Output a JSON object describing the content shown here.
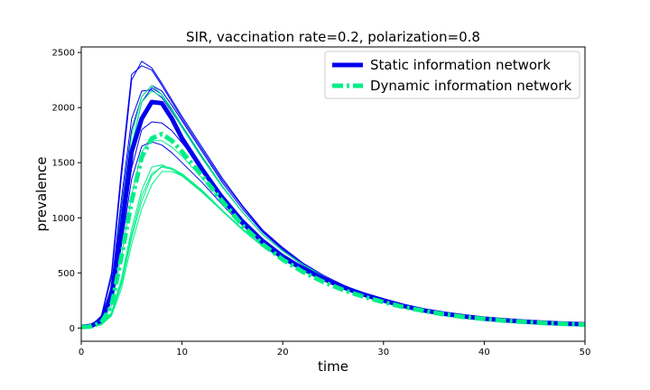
{
  "chart_data": {
    "type": "line",
    "title": "SIR, vaccination rate=0.2, polarization=0.8",
    "xlabel": "time",
    "ylabel": "prevalence",
    "xlim": [
      0,
      50
    ],
    "ylim": [
      -120,
      2550
    ],
    "xticks": [
      0,
      10,
      20,
      30,
      40,
      50
    ],
    "yticks": [
      0,
      500,
      1000,
      1500,
      2000,
      2500
    ],
    "grid": false,
    "legend_position": "top-right",
    "colors": {
      "static": "#0000ee",
      "dynamic": "#00ee88"
    },
    "x": [
      0,
      1,
      2,
      3,
      4,
      5,
      6,
      7,
      8,
      9,
      10,
      12,
      14,
      16,
      18,
      20,
      22,
      24,
      26,
      28,
      30,
      32,
      34,
      36,
      38,
      40,
      42,
      44,
      46,
      48,
      50
    ],
    "series": [
      {
        "name": "Static information network",
        "kind": "static-mean",
        "values": [
          10,
          20,
          70,
          300,
          900,
          1600,
          1900,
          2050,
          2040,
          1900,
          1720,
          1440,
          1180,
          960,
          780,
          640,
          540,
          450,
          370,
          305,
          250,
          200,
          160,
          130,
          105,
          85,
          70,
          58,
          48,
          40,
          34
        ]
      },
      {
        "name": "Dynamic information network",
        "kind": "dynamic-mean",
        "values": [
          8,
          15,
          50,
          200,
          650,
          1150,
          1550,
          1720,
          1760,
          1700,
          1600,
          1380,
          1150,
          930,
          760,
          620,
          510,
          420,
          345,
          285,
          235,
          190,
          155,
          125,
          100,
          82,
          67,
          55,
          45,
          37,
          31
        ]
      },
      {
        "kind": "static-run",
        "values": [
          10,
          25,
          110,
          500,
          1450,
          2300,
          2380,
          2340,
          2200,
          2050,
          1900,
          1620,
          1340,
          1100,
          880,
          720,
          580,
          470,
          380,
          310,
          250,
          200,
          160,
          125,
          100,
          80,
          65,
          52,
          42,
          35,
          29
        ]
      },
      {
        "kind": "static-run",
        "values": [
          10,
          22,
          100,
          460,
          1380,
          2250,
          2420,
          2360,
          2220,
          2070,
          1920,
          1640,
          1360,
          1110,
          890,
          730,
          590,
          480,
          390,
          315,
          255,
          205,
          165,
          130,
          104,
          83,
          67,
          54,
          44,
          36,
          30
        ]
      },
      {
        "kind": "static-run",
        "values": [
          10,
          20,
          80,
          350,
          1100,
          1800,
          2100,
          2200,
          2150,
          2020,
          1880,
          1600,
          1320,
          1080,
          870,
          710,
          580,
          470,
          385,
          312,
          252,
          202,
          162,
          128,
          102,
          82,
          66,
          53,
          43,
          35,
          29
        ]
      },
      {
        "kind": "static-run",
        "values": [
          10,
          18,
          70,
          300,
          950,
          1650,
          2050,
          2180,
          2120,
          1980,
          1830,
          1550,
          1290,
          1050,
          850,
          700,
          570,
          465,
          380,
          310,
          252,
          203,
          163,
          129,
          103,
          83,
          67,
          54,
          44,
          36,
          30
        ]
      },
      {
        "kind": "static-run",
        "values": [
          10,
          16,
          60,
          260,
          800,
          1450,
          1800,
          1870,
          1860,
          1790,
          1680,
          1450,
          1210,
          990,
          810,
          670,
          555,
          460,
          378,
          310,
          252,
          204,
          165,
          132,
          106,
          85,
          69,
          56,
          46,
          38,
          31
        ]
      },
      {
        "kind": "static-run",
        "values": [
          10,
          15,
          55,
          240,
          750,
          1350,
          1650,
          1690,
          1660,
          1590,
          1500,
          1320,
          1120,
          930,
          770,
          640,
          530,
          440,
          365,
          300,
          245,
          200,
          162,
          130,
          104,
          84,
          68,
          55,
          45,
          37,
          31
        ]
      },
      {
        "kind": "static-run",
        "values": [
          10,
          20,
          85,
          380,
          1180,
          1900,
          2150,
          2160,
          2090,
          1960,
          1820,
          1540,
          1280,
          1050,
          850,
          700,
          575,
          470,
          385,
          313,
          253,
          204,
          164,
          130,
          104,
          83,
          67,
          54,
          44,
          36,
          30
        ]
      },
      {
        "kind": "dynamic-run",
        "values": [
          10,
          20,
          80,
          350,
          1050,
          1750,
          2100,
          2200,
          2120,
          1990,
          1840,
          1560,
          1290,
          1050,
          850,
          700,
          575,
          470,
          385,
          313,
          253,
          204,
          164,
          130,
          104,
          83,
          67,
          54,
          44,
          36,
          30
        ]
      },
      {
        "kind": "dynamic-run",
        "values": [
          10,
          18,
          70,
          310,
          950,
          1650,
          2050,
          2150,
          2100,
          1970,
          1820,
          1540,
          1280,
          1050,
          850,
          700,
          575,
          470,
          385,
          313,
          253,
          204,
          164,
          130,
          104,
          83,
          67,
          54,
          44,
          36,
          30
        ]
      },
      {
        "kind": "dynamic-run",
        "values": [
          8,
          12,
          35,
          140,
          450,
          900,
          1250,
          1460,
          1480,
          1440,
          1380,
          1230,
          1060,
          890,
          740,
          620,
          515,
          430,
          355,
          293,
          240,
          196,
          159,
          128,
          103,
          83,
          67,
          55,
          45,
          37,
          31
        ]
      },
      {
        "kind": "dynamic-run",
        "values": [
          8,
          11,
          30,
          120,
          400,
          820,
          1150,
          1380,
          1470,
          1450,
          1400,
          1250,
          1070,
          900,
          750,
          625,
          520,
          433,
          358,
          295,
          242,
          197,
          160,
          129,
          104,
          84,
          68,
          55,
          45,
          37,
          31
        ]
      },
      {
        "kind": "dynamic-run",
        "values": [
          8,
          12,
          32,
          130,
          420,
          850,
          1200,
          1400,
          1460,
          1440,
          1390,
          1240,
          1065,
          895,
          745,
          622,
          518,
          431,
          356,
          294,
          241,
          196,
          160,
          129,
          104,
          83,
          68,
          55,
          45,
          37,
          31
        ]
      },
      {
        "kind": "dynamic-run",
        "values": [
          8,
          14,
          45,
          200,
          650,
          1200,
          1600,
          1700,
          1700,
          1640,
          1560,
          1360,
          1140,
          935,
          765,
          630,
          520,
          430,
          355,
          293,
          240,
          196,
          159,
          128,
          103,
          83,
          67,
          55,
          45,
          37,
          31
        ]
      },
      {
        "kind": "dynamic-run",
        "values": [
          8,
          10,
          28,
          110,
          360,
          760,
          1080,
          1300,
          1420,
          1420,
          1380,
          1240,
          1065,
          895,
          745,
          620,
          516,
          430,
          355,
          293,
          240,
          196,
          159,
          128,
          103,
          83,
          67,
          55,
          45,
          37,
          31
        ]
      }
    ]
  }
}
